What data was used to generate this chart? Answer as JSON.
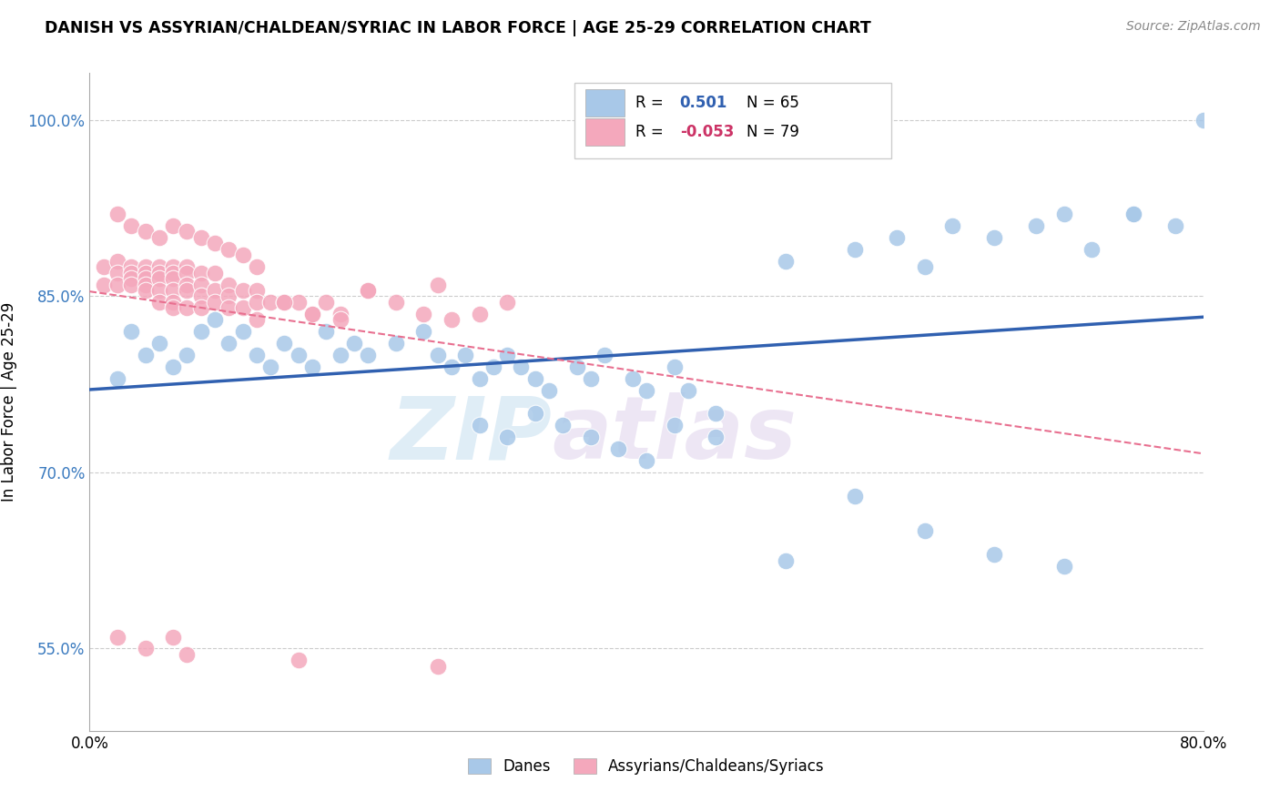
{
  "title": "DANISH VS ASSYRIAN/CHALDEAN/SYRIAC IN LABOR FORCE | AGE 25-29 CORRELATION CHART",
  "source": "Source: ZipAtlas.com",
  "ylabel": "In Labor Force | Age 25-29",
  "xlim": [
    0.0,
    0.8
  ],
  "ylim": [
    0.48,
    1.04
  ],
  "ytick_vals": [
    0.55,
    0.7,
    0.85,
    1.0
  ],
  "ytick_labels": [
    "55.0%",
    "70.0%",
    "85.0%",
    "100.0%"
  ],
  "xtick_vals": [
    0.0,
    0.8
  ],
  "xtick_labels": [
    "0.0%",
    "80.0%"
  ],
  "blue_R": 0.501,
  "blue_N": 65,
  "pink_R": -0.053,
  "pink_N": 79,
  "blue_color": "#a8c8e8",
  "pink_color": "#f4a8bc",
  "blue_line_color": "#3060b0",
  "pink_line_color": "#e87090",
  "legend_label_blue": "Danes",
  "legend_label_pink": "Assyrians/Chaldeans/Syriacs",
  "watermark_zip": "ZIP",
  "watermark_atlas": "atlas",
  "blue_scatter_x": [
    0.02,
    0.03,
    0.04,
    0.05,
    0.06,
    0.07,
    0.08,
    0.09,
    0.1,
    0.11,
    0.12,
    0.13,
    0.14,
    0.15,
    0.16,
    0.17,
    0.18,
    0.19,
    0.2,
    0.22,
    0.24,
    0.25,
    0.26,
    0.27,
    0.28,
    0.29,
    0.3,
    0.31,
    0.32,
    0.33,
    0.35,
    0.36,
    0.37,
    0.39,
    0.4,
    0.42,
    0.43,
    0.45,
    0.28,
    0.3,
    0.32,
    0.34,
    0.36,
    0.38,
    0.4,
    0.42,
    0.45,
    0.5,
    0.55,
    0.58,
    0.6,
    0.62,
    0.65,
    0.68,
    0.7,
    0.72,
    0.75,
    0.78,
    0.8,
    0.5,
    0.55,
    0.6,
    0.65,
    0.7,
    0.75
  ],
  "blue_scatter_y": [
    0.78,
    0.82,
    0.8,
    0.81,
    0.79,
    0.8,
    0.82,
    0.83,
    0.81,
    0.82,
    0.8,
    0.79,
    0.81,
    0.8,
    0.79,
    0.82,
    0.8,
    0.81,
    0.8,
    0.81,
    0.82,
    0.8,
    0.79,
    0.8,
    0.78,
    0.79,
    0.8,
    0.79,
    0.78,
    0.77,
    0.79,
    0.78,
    0.8,
    0.78,
    0.77,
    0.79,
    0.77,
    0.75,
    0.74,
    0.73,
    0.75,
    0.74,
    0.73,
    0.72,
    0.71,
    0.74,
    0.73,
    0.88,
    0.89,
    0.9,
    0.875,
    0.91,
    0.9,
    0.91,
    0.92,
    0.89,
    0.92,
    0.91,
    1.0,
    0.625,
    0.68,
    0.65,
    0.63,
    0.62,
    0.92
  ],
  "pink_scatter_x": [
    0.01,
    0.01,
    0.02,
    0.02,
    0.02,
    0.03,
    0.03,
    0.03,
    0.03,
    0.04,
    0.04,
    0.04,
    0.04,
    0.04,
    0.05,
    0.05,
    0.05,
    0.05,
    0.05,
    0.06,
    0.06,
    0.06,
    0.06,
    0.06,
    0.06,
    0.07,
    0.07,
    0.07,
    0.07,
    0.07,
    0.08,
    0.08,
    0.08,
    0.08,
    0.09,
    0.09,
    0.09,
    0.1,
    0.1,
    0.1,
    0.11,
    0.11,
    0.12,
    0.12,
    0.12,
    0.13,
    0.14,
    0.15,
    0.16,
    0.17,
    0.18,
    0.2,
    0.22,
    0.24,
    0.26,
    0.28,
    0.3,
    0.02,
    0.03,
    0.04,
    0.05,
    0.06,
    0.07,
    0.08,
    0.09,
    0.1,
    0.11,
    0.12,
    0.14,
    0.16,
    0.18,
    0.2,
    0.25,
    0.02,
    0.04,
    0.06,
    0.07,
    0.15,
    0.25
  ],
  "pink_scatter_y": [
    0.875,
    0.86,
    0.88,
    0.87,
    0.86,
    0.875,
    0.87,
    0.865,
    0.86,
    0.875,
    0.87,
    0.865,
    0.86,
    0.855,
    0.875,
    0.87,
    0.865,
    0.855,
    0.845,
    0.875,
    0.87,
    0.865,
    0.855,
    0.845,
    0.84,
    0.875,
    0.87,
    0.86,
    0.855,
    0.84,
    0.87,
    0.86,
    0.85,
    0.84,
    0.87,
    0.855,
    0.845,
    0.86,
    0.85,
    0.84,
    0.855,
    0.84,
    0.855,
    0.845,
    0.83,
    0.845,
    0.845,
    0.845,
    0.835,
    0.845,
    0.835,
    0.855,
    0.845,
    0.835,
    0.83,
    0.835,
    0.845,
    0.92,
    0.91,
    0.905,
    0.9,
    0.91,
    0.905,
    0.9,
    0.895,
    0.89,
    0.885,
    0.875,
    0.845,
    0.835,
    0.83,
    0.855,
    0.86,
    0.56,
    0.55,
    0.56,
    0.545,
    0.54,
    0.535
  ]
}
